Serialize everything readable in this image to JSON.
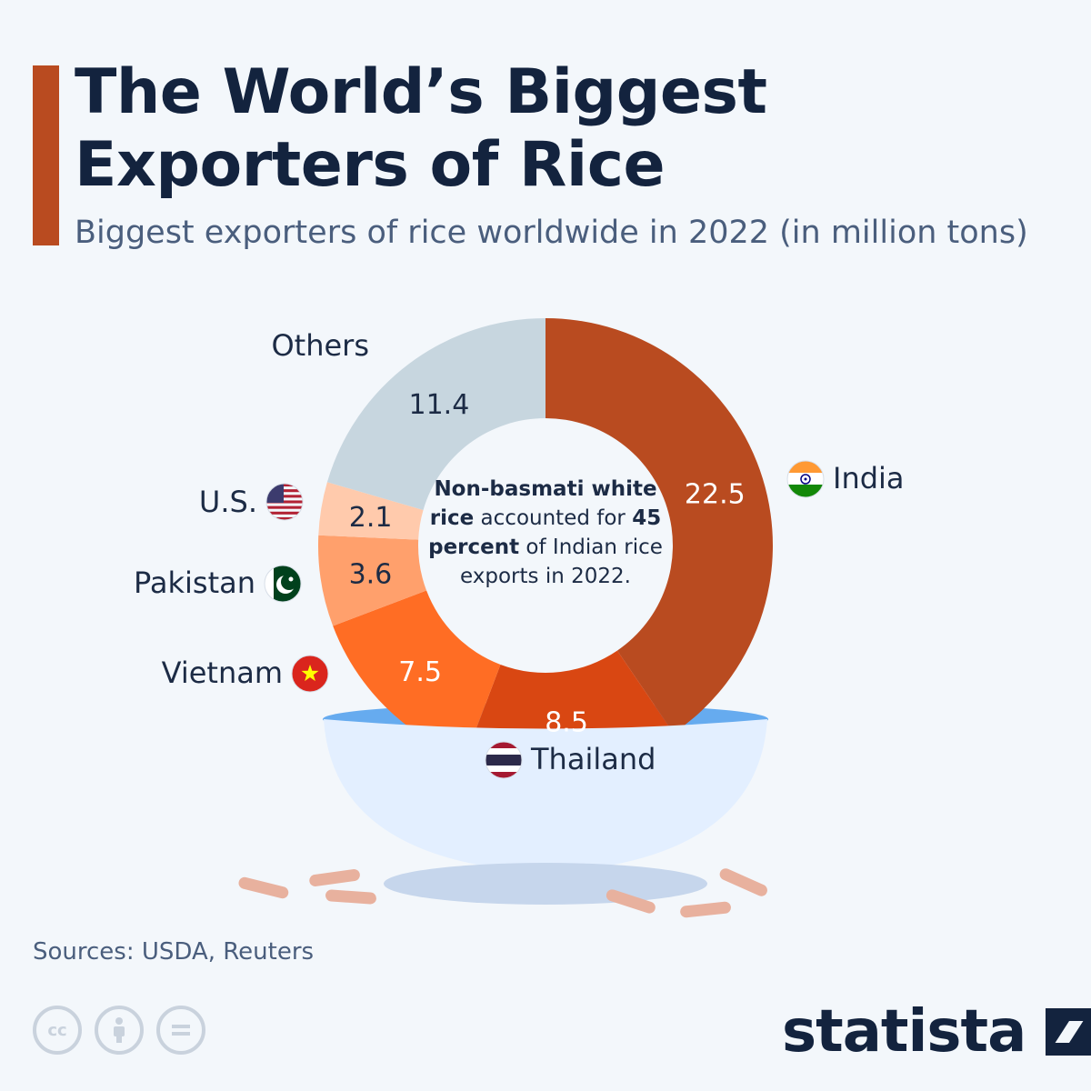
{
  "header": {
    "title_line1": "The World’s Biggest",
    "title_line2": "Exporters of Rice",
    "subtitle": "Biggest exporters of rice worldwide in 2022 (in million tons)"
  },
  "chart_data": {
    "type": "pie",
    "variant": "donut",
    "title": "The World’s Biggest Exporters of Rice",
    "subtitle": "Biggest exporters of rice worldwide in 2022 (in million tons)",
    "slices": [
      {
        "label": "India",
        "value": 22.5,
        "color": "#b94b20",
        "flag": "india-flag-icon"
      },
      {
        "label": "Thailand",
        "value": 8.5,
        "color": "#d94712",
        "flag": "thailand-flag-icon"
      },
      {
        "label": "Vietnam",
        "value": 7.5,
        "color": "#ff6d24",
        "flag": "vietnam-flag-icon"
      },
      {
        "label": "Pakistan",
        "value": 3.6,
        "color": "#ffa06c",
        "flag": "pakistan-flag-icon"
      },
      {
        "label": "U.S.",
        "value": 2.1,
        "color": "#ffcaac",
        "flag": "us-flag-icon"
      },
      {
        "label": "Others",
        "value": 11.4,
        "color": "#c7d6df"
      }
    ],
    "start": "12 o'clock",
    "direction": "clockwise"
  },
  "center_note": {
    "bold_1": "Non-basmati white rice",
    "text_1": " accounted for ",
    "bold_2": "45 percent",
    "text_2": " of Indian rice exports in 2022."
  },
  "footer": {
    "sources": "Sources: USDA, Reuters",
    "license_icons": [
      "cc-icon",
      "attribution-icon",
      "no-derivatives-icon"
    ],
    "brand": "statista"
  },
  "colors": {
    "accent": "#b94b20",
    "title": "#13233e",
    "subtitle": "#4a5e7d",
    "background": "#f3f7fb"
  }
}
